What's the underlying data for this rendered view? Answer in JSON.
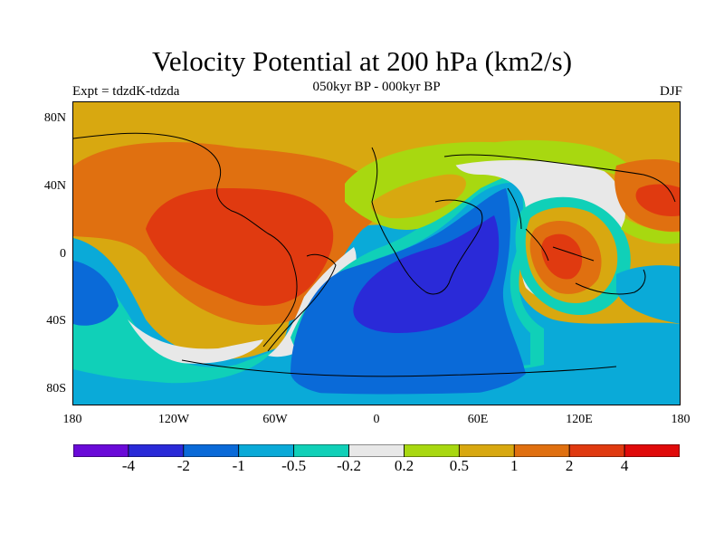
{
  "title": "Velocity Potential at 200 hPa (km2/s)",
  "subtitle": "050kyr BP - 000kyr BP",
  "left_label": "Expt = tdzdK-tdzda",
  "right_label": "DJF",
  "lat_ticks": [
    "80N",
    "40N",
    "0",
    "40S",
    "80S"
  ],
  "lon_ticks": [
    "180",
    "120W",
    "60W",
    "0",
    "60E",
    "120E",
    "180"
  ],
  "colorbar": {
    "colors": [
      "#6a0ad8",
      "#2a2ad8",
      "#0a6ad8",
      "#0aaad8",
      "#10d0b8",
      "#e8e8e8",
      "#a8d810",
      "#d8a810",
      "#e07010",
      "#e03a10",
      "#e00a0a"
    ],
    "labels": [
      "-4",
      "-2",
      "-1",
      "-0.5",
      "-0.2",
      "0.2",
      "0.5",
      "1",
      "2",
      "4"
    ]
  },
  "palette": {
    "deep_blue": "#2a2ad8",
    "blue": "#0a6ad8",
    "light_blue": "#0aaad8",
    "teal": "#10d0b8",
    "white": "#e8e8e8",
    "lime": "#a8d810",
    "gold": "#d8a810",
    "orange": "#e07010",
    "red_orange": "#e03a10"
  }
}
